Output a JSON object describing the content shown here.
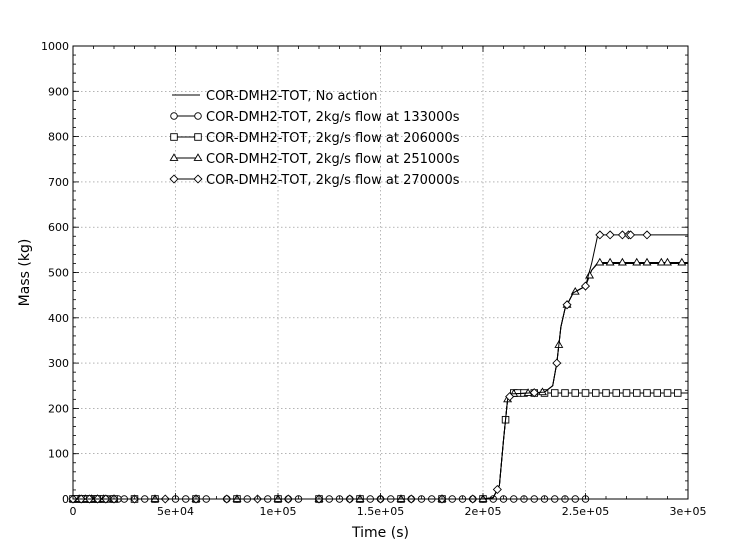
{
  "chart_data": {
    "type": "line",
    "title": "",
    "xlabel": "Time (s)",
    "ylabel": "Mass (kg)",
    "xlim": [
      0,
      300000
    ],
    "ylim": [
      0,
      1000
    ],
    "grid": true,
    "legend_position": "top-left",
    "xticks": [
      {
        "value": 0,
        "label": "0"
      },
      {
        "value": 50000,
        "label": "5e+04"
      },
      {
        "value": 100000,
        "label": "1e+05"
      },
      {
        "value": 150000,
        "label": "1.5e+05"
      },
      {
        "value": 200000,
        "label": "2e+05"
      },
      {
        "value": 250000,
        "label": "2.5e+05"
      },
      {
        "value": 300000,
        "label": "3e+05"
      }
    ],
    "yticks": [
      {
        "value": 0,
        "label": "0"
      },
      {
        "value": 100,
        "label": "100"
      },
      {
        "value": 200,
        "label": "200"
      },
      {
        "value": 300,
        "label": "300"
      },
      {
        "value": 400,
        "label": "400"
      },
      {
        "value": 500,
        "label": "500"
      },
      {
        "value": 600,
        "label": "600"
      },
      {
        "value": 700,
        "label": "700"
      },
      {
        "value": 800,
        "label": "800"
      },
      {
        "value": 900,
        "label": "900"
      },
      {
        "value": 1000,
        "label": "1000"
      }
    ],
    "series": [
      {
        "name": "COR-DMH2-TOT, No action",
        "marker": "none",
        "x": [
          0,
          200000,
          205000,
          208000,
          210000,
          212000,
          214000,
          218000,
          230000,
          234000,
          236000,
          238000,
          240000,
          244000,
          250000,
          253000,
          256000,
          300000
        ],
        "y": [
          0,
          0,
          3,
          30,
          130,
          220,
          232,
          233,
          236,
          250,
          300,
          380,
          420,
          455,
          470,
          505,
          520,
          520
        ],
        "markers_x": []
      },
      {
        "name": "COR-DMH2-TOT, 2kg/s flow at 133000s",
        "marker": "circle",
        "x": [
          0,
          300000
        ],
        "y": [
          0,
          0
        ],
        "markers_x": [
          0,
          1000,
          2000,
          3000,
          4000,
          5000,
          6000,
          7000,
          8000,
          9000,
          10000,
          11000,
          12000,
          13000,
          14000,
          15000,
          16000,
          17000,
          18000,
          19000,
          20000,
          22000,
          25000,
          30000,
          35000,
          40000,
          50000,
          55000,
          60000,
          65000,
          75000,
          80000,
          85000,
          95000,
          100000,
          105000,
          110000,
          120000,
          125000,
          130000,
          135000,
          140000,
          145000,
          150000,
          155000,
          160000,
          165000,
          170000,
          175000,
          180000,
          185000,
          190000,
          195000,
          200000,
          205000,
          210000,
          215000,
          220000,
          225000,
          230000,
          235000,
          240000,
          245000,
          250000
        ]
      },
      {
        "name": "COR-DMH2-TOT, 2kg/s flow at 206000s",
        "marker": "square",
        "x": [
          0,
          200000,
          205000,
          208000,
          210000,
          212000,
          214000,
          300000
        ],
        "y": [
          0,
          0,
          3,
          30,
          130,
          220,
          234,
          234
        ],
        "markers_x": [
          0,
          2000,
          4000,
          6000,
          8000,
          10000,
          12000,
          15000,
          20000,
          30000,
          40000,
          60000,
          80000,
          100000,
          120000,
          140000,
          160000,
          180000,
          200000,
          211000,
          215000,
          217000,
          220000,
          225000,
          230000,
          235000,
          240000,
          245000,
          250000,
          255000,
          260000,
          265000,
          270000,
          275000,
          280000,
          285000,
          290000,
          295000
        ]
      },
      {
        "name": "COR-DMH2-TOT, 2kg/s flow at 251000s",
        "marker": "triangle",
        "x": [
          0,
          200000,
          205000,
          208000,
          210000,
          212000,
          214000,
          218000,
          230000,
          234000,
          236000,
          238000,
          240000,
          244000,
          250000,
          253000,
          256000,
          300000
        ],
        "y": [
          0,
          0,
          3,
          30,
          130,
          220,
          232,
          233,
          236,
          250,
          300,
          380,
          420,
          455,
          470,
          505,
          522,
          522
        ],
        "markers_x": [
          0,
          3000,
          6000,
          9000,
          12000,
          15000,
          20000,
          40000,
          60000,
          80000,
          100000,
          120000,
          140000,
          160000,
          180000,
          200000,
          212000,
          215000,
          222000,
          229000,
          237000,
          241000,
          245000,
          252000,
          257000,
          262000,
          268000,
          275000,
          280000,
          287000,
          290000,
          297000
        ]
      },
      {
        "name": "COR-DMH2-TOT, 2kg/s flow at 270000s",
        "marker": "diamond",
        "x": [
          0,
          200000,
          205000,
          208000,
          210000,
          212000,
          214000,
          218000,
          230000,
          234000,
          236000,
          238000,
          240000,
          244000,
          250000,
          253000,
          256000,
          300000
        ],
        "y": [
          0,
          0,
          3,
          30,
          130,
          220,
          232,
          233,
          236,
          250,
          300,
          380,
          420,
          455,
          470,
          520,
          583,
          583
        ],
        "markers_x": [
          0,
          4000,
          8000,
          12000,
          16000,
          20000,
          30000,
          45000,
          60000,
          75000,
          90000,
          105000,
          120000,
          135000,
          150000,
          165000,
          180000,
          195000,
          207000,
          213000,
          225000,
          236000,
          241000,
          250000,
          257000,
          262000,
          268000,
          271000,
          272000,
          280000
        ]
      }
    ]
  }
}
